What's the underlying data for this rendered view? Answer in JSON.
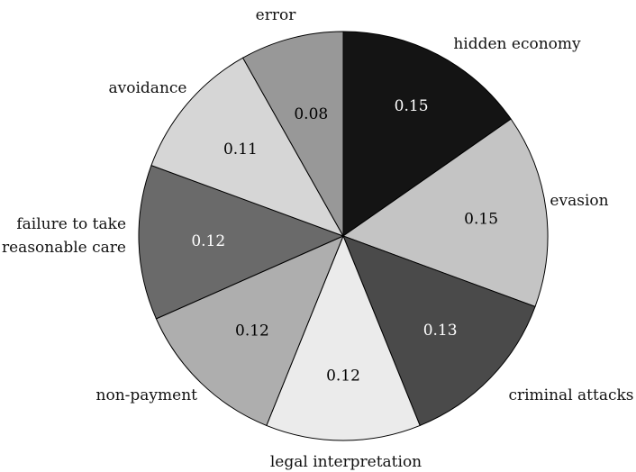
{
  "chart_data": {
    "type": "pie",
    "title": "",
    "slices": [
      {
        "label": "hidden economy",
        "value": 0.15,
        "value_label": "0.15",
        "color": "#141414",
        "text_color": "#ffffff"
      },
      {
        "label": "evasion",
        "value": 0.15,
        "value_label": "0.15",
        "color": "#c4c4c4",
        "text_color": "#000000"
      },
      {
        "label": "criminal attacks",
        "value": 0.13,
        "value_label": "0.13",
        "color": "#4a4a4a",
        "text_color": "#ffffff"
      },
      {
        "label": "legal interpretation",
        "value": 0.12,
        "value_label": "0.12",
        "color": "#ebebeb",
        "text_color": "#000000"
      },
      {
        "label": "non-payment",
        "value": 0.12,
        "value_label": "0.12",
        "color": "#aeaeae",
        "text_color": "#000000"
      },
      {
        "label": "failure to take reasonable care",
        "label_lines": [
          "failure to take",
          "reasonable care"
        ],
        "value": 0.12,
        "value_label": "0.12",
        "color": "#6a6a6a",
        "text_color": "#ffffff"
      },
      {
        "label": "avoidance",
        "value": 0.11,
        "value_label": "0.11",
        "color": "#d6d6d6",
        "text_color": "#000000"
      },
      {
        "label": "error",
        "value": 0.08,
        "value_label": "0.08",
        "color": "#989898",
        "text_color": "#000000"
      }
    ]
  }
}
